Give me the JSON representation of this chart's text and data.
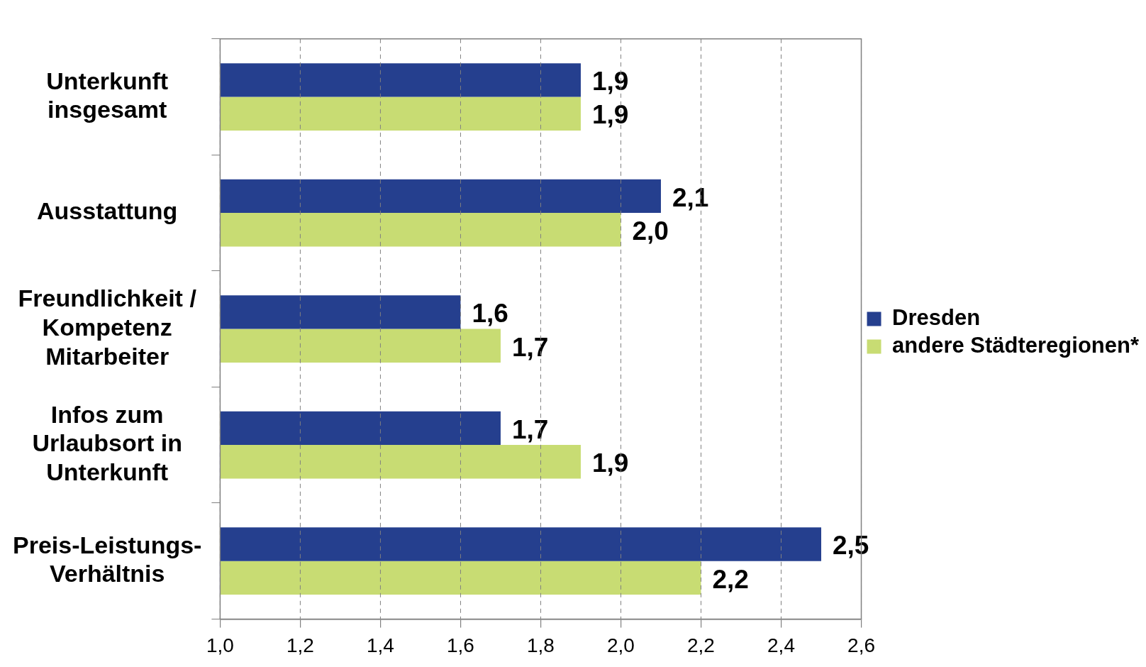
{
  "chart_data": {
    "type": "bar",
    "orientation": "horizontal",
    "categories": [
      "Unterkunft\ninsgesamt",
      "Ausstattung",
      "Freundlichkeit /\nKompetenz\nMitarbeiter",
      "Infos zum\nUrlaubsort in\nUnterkunft",
      "Preis-Leistungs-\nVerhältnis"
    ],
    "series": [
      {
        "name": "Dresden",
        "color": "#253f8e",
        "values": [
          1.9,
          2.1,
          1.6,
          1.7,
          2.5
        ],
        "value_labels": [
          "1,9",
          "2,1",
          "1,6",
          "1,7",
          "2,5"
        ]
      },
      {
        "name": "andere Städteregionen*",
        "color": "#c8dc73",
        "values": [
          1.9,
          2.0,
          1.7,
          1.9,
          2.2
        ],
        "value_labels": [
          "1,9",
          "2,0",
          "1,7",
          "1,9",
          "2,2"
        ]
      }
    ],
    "xlim": [
      1.0,
      2.6
    ],
    "xticks": [
      {
        "value": 1.0,
        "label": "1,0"
      },
      {
        "value": 1.2,
        "label": "1,2"
      },
      {
        "value": 1.4,
        "label": "1,4"
      },
      {
        "value": 1.6,
        "label": "1,6"
      },
      {
        "value": 1.8,
        "label": "1,8"
      },
      {
        "value": 2.0,
        "label": "2,0"
      },
      {
        "value": 2.2,
        "label": "2,2"
      },
      {
        "value": 2.4,
        "label": "2,4"
      },
      {
        "value": 2.6,
        "label": "2,6"
      }
    ],
    "grid": "x",
    "legend": "right"
  }
}
